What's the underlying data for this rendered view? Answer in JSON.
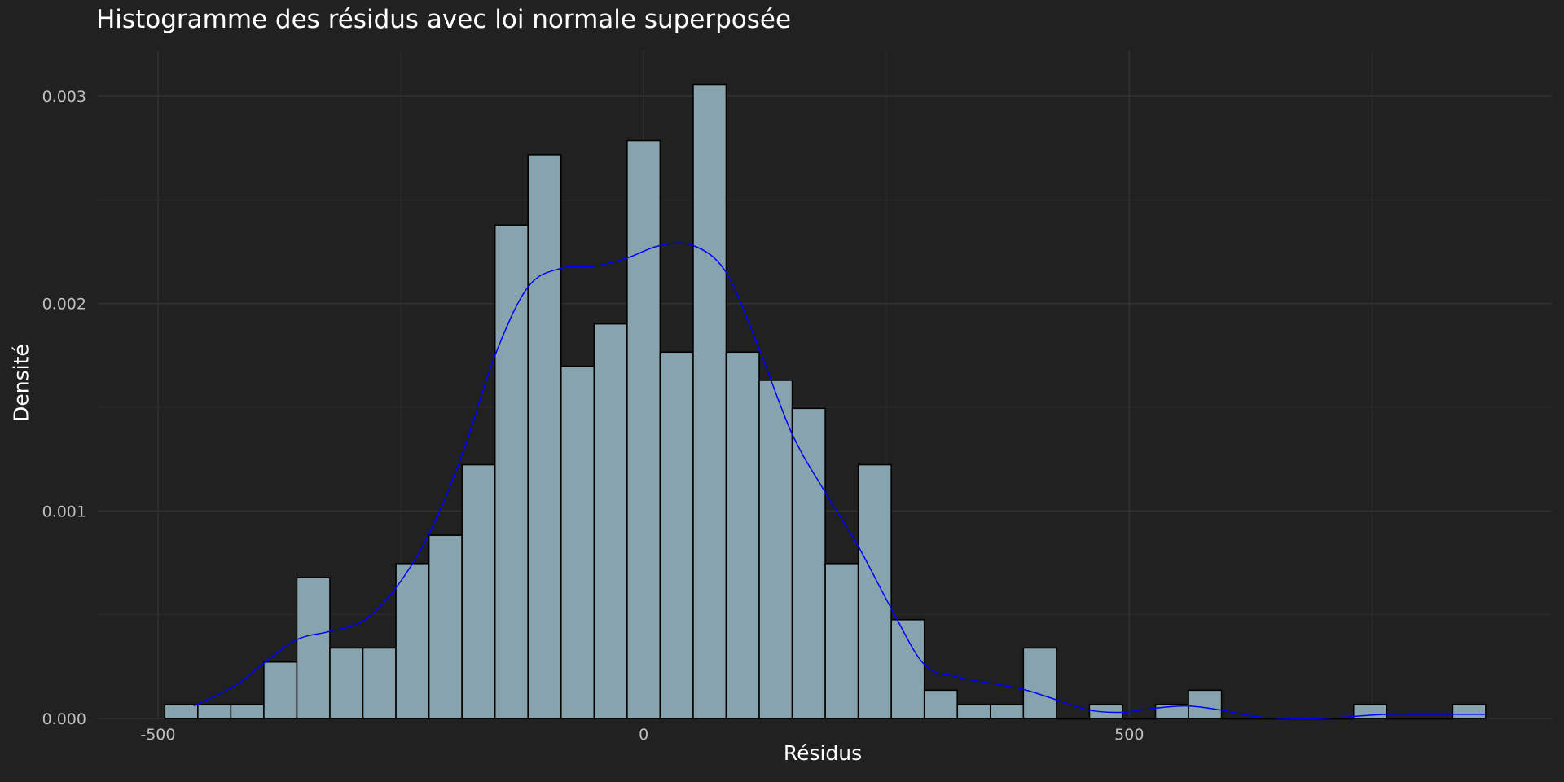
{
  "chart_data": {
    "type": "bar",
    "title": "Histogramme des résidus avec loi normale superposée",
    "xlabel": "Résidus",
    "ylabel": "Densité",
    "xlim": [
      -562,
      935
    ],
    "ylim": [
      0,
      0.00322
    ],
    "x_ticks": [
      -500,
      0,
      500
    ],
    "x_tick_labels": [
      "-500",
      "0",
      "500"
    ],
    "y_ticks": [
      0.0,
      0.001,
      0.002,
      0.003
    ],
    "y_tick_labels": [
      "0.000",
      "0.001",
      "0.002",
      "0.003"
    ],
    "grid": true,
    "bin_width": 34,
    "bins": [
      {
        "x0": -493,
        "x1": -459,
        "density": 6.8e-05
      },
      {
        "x0": -459,
        "x1": -425,
        "density": 6.8e-05
      },
      {
        "x0": -425,
        "x1": -391,
        "density": 6.8e-05
      },
      {
        "x0": -391,
        "x1": -357,
        "density": 0.000272
      },
      {
        "x0": -357,
        "x1": -323,
        "density": 0.000679
      },
      {
        "x0": -323,
        "x1": -289,
        "density": 0.00034
      },
      {
        "x0": -289,
        "x1": -255,
        "density": 0.00034
      },
      {
        "x0": -255,
        "x1": -221,
        "density": 0.000747
      },
      {
        "x0": -221,
        "x1": -187,
        "density": 0.000883
      },
      {
        "x0": -187,
        "x1": -153,
        "density": 0.001223
      },
      {
        "x0": -153,
        "x1": -119,
        "density": 0.002378
      },
      {
        "x0": -119,
        "x1": -85,
        "density": 0.002718
      },
      {
        "x0": -85,
        "x1": -51,
        "density": 0.001698
      },
      {
        "x0": -51,
        "x1": -17,
        "density": 0.001902
      },
      {
        "x0": -17,
        "x1": 17,
        "density": 0.002786
      },
      {
        "x0": 17,
        "x1": 51,
        "density": 0.001766
      },
      {
        "x0": 51,
        "x1": 85,
        "density": 0.003057
      },
      {
        "x0": 85,
        "x1": 119,
        "density": 0.001766
      },
      {
        "x0": 119,
        "x1": 153,
        "density": 0.00163
      },
      {
        "x0": 153,
        "x1": 187,
        "density": 0.001495
      },
      {
        "x0": 187,
        "x1": 221,
        "density": 0.000747
      },
      {
        "x0": 221,
        "x1": 255,
        "density": 0.001223
      },
      {
        "x0": 255,
        "x1": 289,
        "density": 0.000476
      },
      {
        "x0": 289,
        "x1": 323,
        "density": 0.000136
      },
      {
        "x0": 323,
        "x1": 357,
        "density": 6.8e-05
      },
      {
        "x0": 357,
        "x1": 391,
        "density": 6.8e-05
      },
      {
        "x0": 391,
        "x1": 425,
        "density": 0.00034
      },
      {
        "x0": 425,
        "x1": 459,
        "density": 0.0
      },
      {
        "x0": 459,
        "x1": 493,
        "density": 6.8e-05
      },
      {
        "x0": 493,
        "x1": 527,
        "density": 0.0
      },
      {
        "x0": 527,
        "x1": 561,
        "density": 6.8e-05
      },
      {
        "x0": 561,
        "x1": 595,
        "density": 0.000136
      },
      {
        "x0": 595,
        "x1": 629,
        "density": 0.0
      },
      {
        "x0": 629,
        "x1": 663,
        "density": 0.0
      },
      {
        "x0": 663,
        "x1": 697,
        "density": 0.0
      },
      {
        "x0": 697,
        "x1": 731,
        "density": 0.0
      },
      {
        "x0": 731,
        "x1": 765,
        "density": 6.8e-05
      },
      {
        "x0": 765,
        "x1": 799,
        "density": 0.0
      },
      {
        "x0": 799,
        "x1": 833,
        "density": 0.0
      },
      {
        "x0": 833,
        "x1": 867,
        "density": 6.8e-05
      }
    ],
    "density_curve": {
      "x": [
        -463,
        -420,
        -390,
        -357,
        -323,
        -289,
        -255,
        -221,
        -187,
        -153,
        -119,
        -85,
        -51,
        -17,
        17,
        51,
        85,
        119,
        153,
        187,
        221,
        255,
        289,
        323,
        357,
        391,
        425,
        459,
        493,
        527,
        561,
        595,
        629,
        663,
        697,
        731,
        765,
        799,
        833,
        867
      ],
      "y": [
        6e-05,
        0.00016,
        0.00027,
        0.00038,
        0.00042,
        0.00047,
        0.00063,
        0.00089,
        0.00127,
        0.00175,
        0.00208,
        0.00217,
        0.00218,
        0.00222,
        0.00228,
        0.00228,
        0.00215,
        0.00178,
        0.00137,
        0.00109,
        0.00083,
        0.00053,
        0.00026,
        0.0002,
        0.00017,
        0.00014,
        9e-05,
        4e-05,
        3e-05,
        5e-05,
        6e-05,
        4e-05,
        1e-05,
        0.0,
        0.0,
        1e-05,
        2e-05,
        2e-05,
        2e-05,
        2e-05
      ]
    },
    "colors": {
      "background": "#212121",
      "bar_fill": "#87a4ae",
      "bar_stroke": "#000000",
      "curve": "#0000ff",
      "grid": "#333333"
    }
  }
}
